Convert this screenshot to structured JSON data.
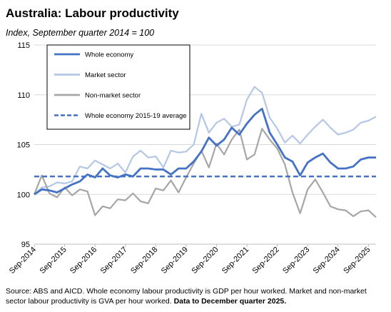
{
  "chart_data": {
    "type": "line",
    "title": "Australia: Labour productivity",
    "subtitle": "Index, September quarter 2014 = 100",
    "xlabel": "",
    "ylabel": "",
    "ylim": [
      95,
      115
    ],
    "yticks": [
      "95",
      "100",
      "105",
      "110",
      "115"
    ],
    "xtick_labels": [
      "Sep-2014",
      "Sep-2015",
      "Sep-2016",
      "Sep-2017",
      "Sep-2018",
      "Sep-2019",
      "Sep-2020",
      "Sep-2021",
      "Sep-2022",
      "Sep-2023",
      "Sep-2024",
      "Sep-2025"
    ],
    "x_start": "Sep-2014",
    "x_end": "Dec-2025",
    "legend_position": "top-left-inside",
    "series": [
      {
        "name": "Whole economy",
        "color": "#4472C4",
        "style": "solid",
        "values": [
          100.0,
          100.5,
          100.4,
          100.2,
          100.6,
          101.0,
          101.3,
          102.0,
          101.7,
          102.6,
          101.9,
          101.7,
          102.0,
          101.8,
          102.6,
          102.6,
          102.5,
          102.5,
          102.0,
          102.6,
          102.6,
          103.3,
          104.3,
          105.7,
          104.9,
          105.5,
          106.7,
          106.0,
          107.1,
          108.0,
          108.6,
          106.2,
          105.0,
          103.7,
          103.3,
          101.9,
          103.2,
          103.7,
          104.1,
          103.2,
          102.6,
          102.6,
          102.8,
          103.5,
          103.7,
          103.7
        ]
      },
      {
        "name": "Market sector",
        "color": "#B4C7E7",
        "style": "solid",
        "values": [
          100.0,
          100.7,
          100.8,
          101.2,
          101.1,
          101.3,
          102.8,
          102.6,
          103.4,
          103.0,
          102.6,
          103.1,
          102.2,
          103.8,
          104.4,
          103.7,
          103.8,
          102.7,
          104.4,
          104.2,
          104.3,
          105.0,
          108.1,
          106.2,
          107.2,
          107.6,
          106.8,
          107.0,
          109.5,
          110.8,
          110.2,
          107.7,
          106.6,
          105.2,
          105.9,
          105.1,
          106.0,
          106.8,
          107.5,
          106.7,
          106.0,
          106.2,
          106.5,
          107.2,
          107.4,
          107.8
        ]
      },
      {
        "name": "Non-market sector",
        "color": "#A6A6A6",
        "style": "solid",
        "values": [
          100.0,
          101.9,
          100.1,
          99.7,
          100.7,
          99.9,
          100.5,
          100.3,
          97.9,
          98.8,
          98.6,
          99.5,
          99.4,
          100.1,
          99.3,
          99.1,
          100.6,
          100.4,
          101.4,
          100.2,
          101.7,
          103.1,
          104.4,
          102.7,
          105.1,
          104.0,
          105.5,
          106.5,
          103.5,
          104.0,
          106.6,
          105.5,
          104.6,
          103.0,
          100.2,
          98.1,
          100.5,
          101.5,
          100.2,
          98.8,
          98.5,
          98.4,
          97.8,
          98.3,
          98.4,
          97.7
        ]
      },
      {
        "name": "Whole economy 2015-19 average",
        "color": "#4472C4",
        "style": "dashed",
        "values": [
          101.8,
          101.8
        ]
      }
    ]
  },
  "footnote": {
    "text": "Source: ABS and AICD. Whole economy labour productivity is GDP per hour worked. Market and non-market sector labour productivity is GVA per hour worked. ",
    "bold": "Data to December quarter 2025."
  }
}
